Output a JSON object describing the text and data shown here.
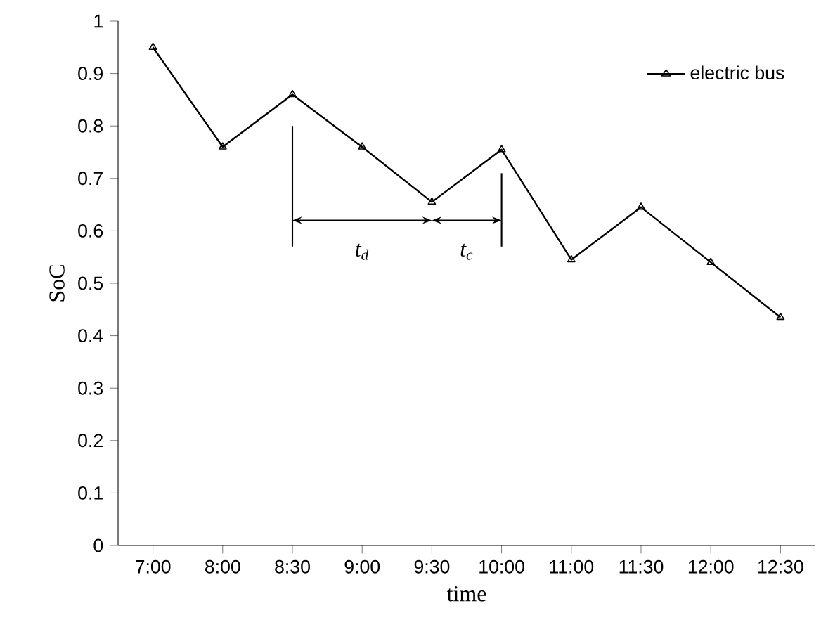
{
  "chart_data": {
    "type": "line",
    "xlabel": "time",
    "ylabel": "SoC",
    "categories": [
      "7:00",
      "8:00",
      "8:30",
      "9:00",
      "9:30",
      "10:00",
      "11:00",
      "11:30",
      "12:00",
      "12:30"
    ],
    "series": [
      {
        "name": "electric bus",
        "color": "#000000",
        "values": [
          0.95,
          0.76,
          0.86,
          0.76,
          0.655,
          0.755,
          0.545,
          0.645,
          0.54,
          0.435
        ]
      }
    ],
    "ylim": [
      0,
      1
    ],
    "yticks": [
      0,
      0.1,
      0.2,
      0.3,
      0.4,
      0.5,
      0.6,
      0.7,
      0.8,
      0.9,
      1
    ],
    "annotations": [
      "t$_{d}$",
      "t$_{c}$"
    ],
    "legend": "top right",
    "marker": "triangle",
    "line_style": "solid",
    "grid": false
  }
}
